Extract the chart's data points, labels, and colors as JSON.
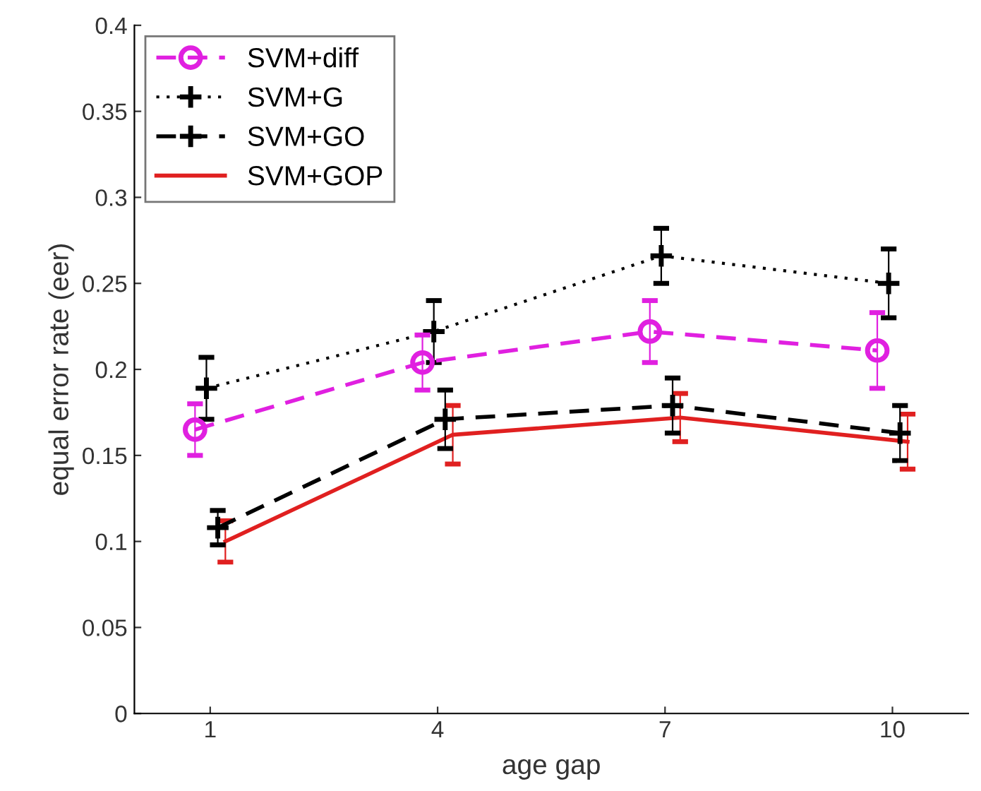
{
  "chart_data": {
    "type": "line",
    "xlabel": "age gap",
    "ylabel": "equal error rate (eer)",
    "xlim": [
      0,
      11
    ],
    "xticks": [
      1,
      4,
      7,
      10
    ],
    "ylim": [
      0,
      0.4
    ],
    "yticks": [
      0,
      0.05,
      0.1,
      0.15,
      0.2,
      0.25,
      0.3,
      0.35,
      0.4
    ],
    "grid": false,
    "legend": "top left",
    "series": [
      {
        "name": "SVM+diff",
        "color": "#e020e0",
        "line_style": "dashed",
        "marker": "circle",
        "x": [
          0.8,
          3.8,
          6.8,
          9.8
        ],
        "values": [
          0.165,
          0.204,
          0.222,
          0.211
        ],
        "errors": [
          0.015,
          0.016,
          0.018,
          0.022
        ]
      },
      {
        "name": "SVM+G",
        "color": "#000000",
        "line_style": "dotted",
        "marker": "cross",
        "x": [
          0.95,
          3.95,
          6.95,
          9.95
        ],
        "values": [
          0.189,
          0.222,
          0.266,
          0.25
        ],
        "errors": [
          0.018,
          0.018,
          0.016,
          0.02
        ]
      },
      {
        "name": "SVM+GO",
        "color": "#000000",
        "line_style": "dashed",
        "marker": "cross",
        "x": [
          1.1,
          4.1,
          7.1,
          10.1
        ],
        "values": [
          0.108,
          0.171,
          0.179,
          0.163
        ],
        "errors": [
          0.01,
          0.017,
          0.016,
          0.016
        ]
      },
      {
        "name": "SVM+GOP",
        "color": "#e02020",
        "line_style": "solid",
        "marker": "none",
        "x": [
          1.2,
          4.2,
          7.2,
          10.2
        ],
        "values": [
          0.1,
          0.162,
          0.172,
          0.158
        ],
        "errors": [
          0.012,
          0.017,
          0.014,
          0.016
        ]
      }
    ]
  }
}
